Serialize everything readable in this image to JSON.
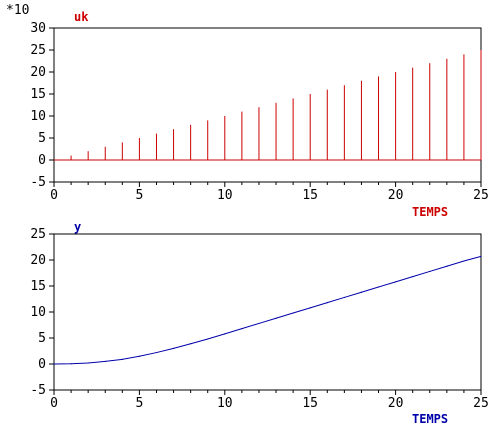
{
  "colors": {
    "top": "#cc0000",
    "bottom": "#0000aa",
    "axis": "#000000"
  },
  "chart_data": [
    {
      "type": "bar",
      "title": "uk",
      "xlabel": "TEMPS",
      "ylabel": "",
      "scale_multiplier": "*10",
      "xlim": [
        0,
        25
      ],
      "ylim": [
        -5,
        30
      ],
      "xticks": [
        "0",
        "5",
        "10",
        "15",
        "20",
        "25"
      ],
      "yticks": [
        "-5",
        "0",
        "5",
        "10",
        "15",
        "20",
        "25",
        "30"
      ],
      "x": [
        1,
        2,
        3,
        4,
        5,
        6,
        7,
        8,
        9,
        10,
        11,
        12,
        13,
        14,
        15,
        16,
        17,
        18,
        19,
        20,
        21,
        22,
        23,
        24,
        25
      ],
      "values": [
        1,
        2,
        3,
        4,
        5,
        6,
        7,
        8,
        9,
        10,
        11,
        12,
        13,
        14,
        15,
        16,
        17,
        18,
        19,
        20,
        21,
        22,
        23,
        24,
        25
      ]
    },
    {
      "type": "line",
      "title": "y",
      "xlabel": "TEMPS",
      "ylabel": "",
      "xlim": [
        0,
        25
      ],
      "ylim": [
        -5,
        25
      ],
      "xticks": [
        "0",
        "5",
        "10",
        "15",
        "20",
        "25"
      ],
      "yticks": [
        "-5",
        "0",
        "5",
        "10",
        "15",
        "20",
        "25"
      ],
      "x": [
        0,
        1,
        2,
        3,
        4,
        5,
        6,
        7,
        8,
        9,
        10,
        11,
        12,
        13,
        14,
        15,
        16,
        17,
        18,
        19,
        20,
        21,
        22,
        23,
        24,
        25
      ],
      "values": [
        0,
        0.05,
        0.2,
        0.5,
        0.9,
        1.5,
        2.2,
        3.0,
        3.9,
        4.8,
        5.8,
        6.8,
        7.8,
        8.8,
        9.8,
        10.8,
        11.8,
        12.8,
        13.8,
        14.8,
        15.8,
        16.8,
        17.8,
        18.8,
        19.8,
        20.7
      ]
    }
  ]
}
